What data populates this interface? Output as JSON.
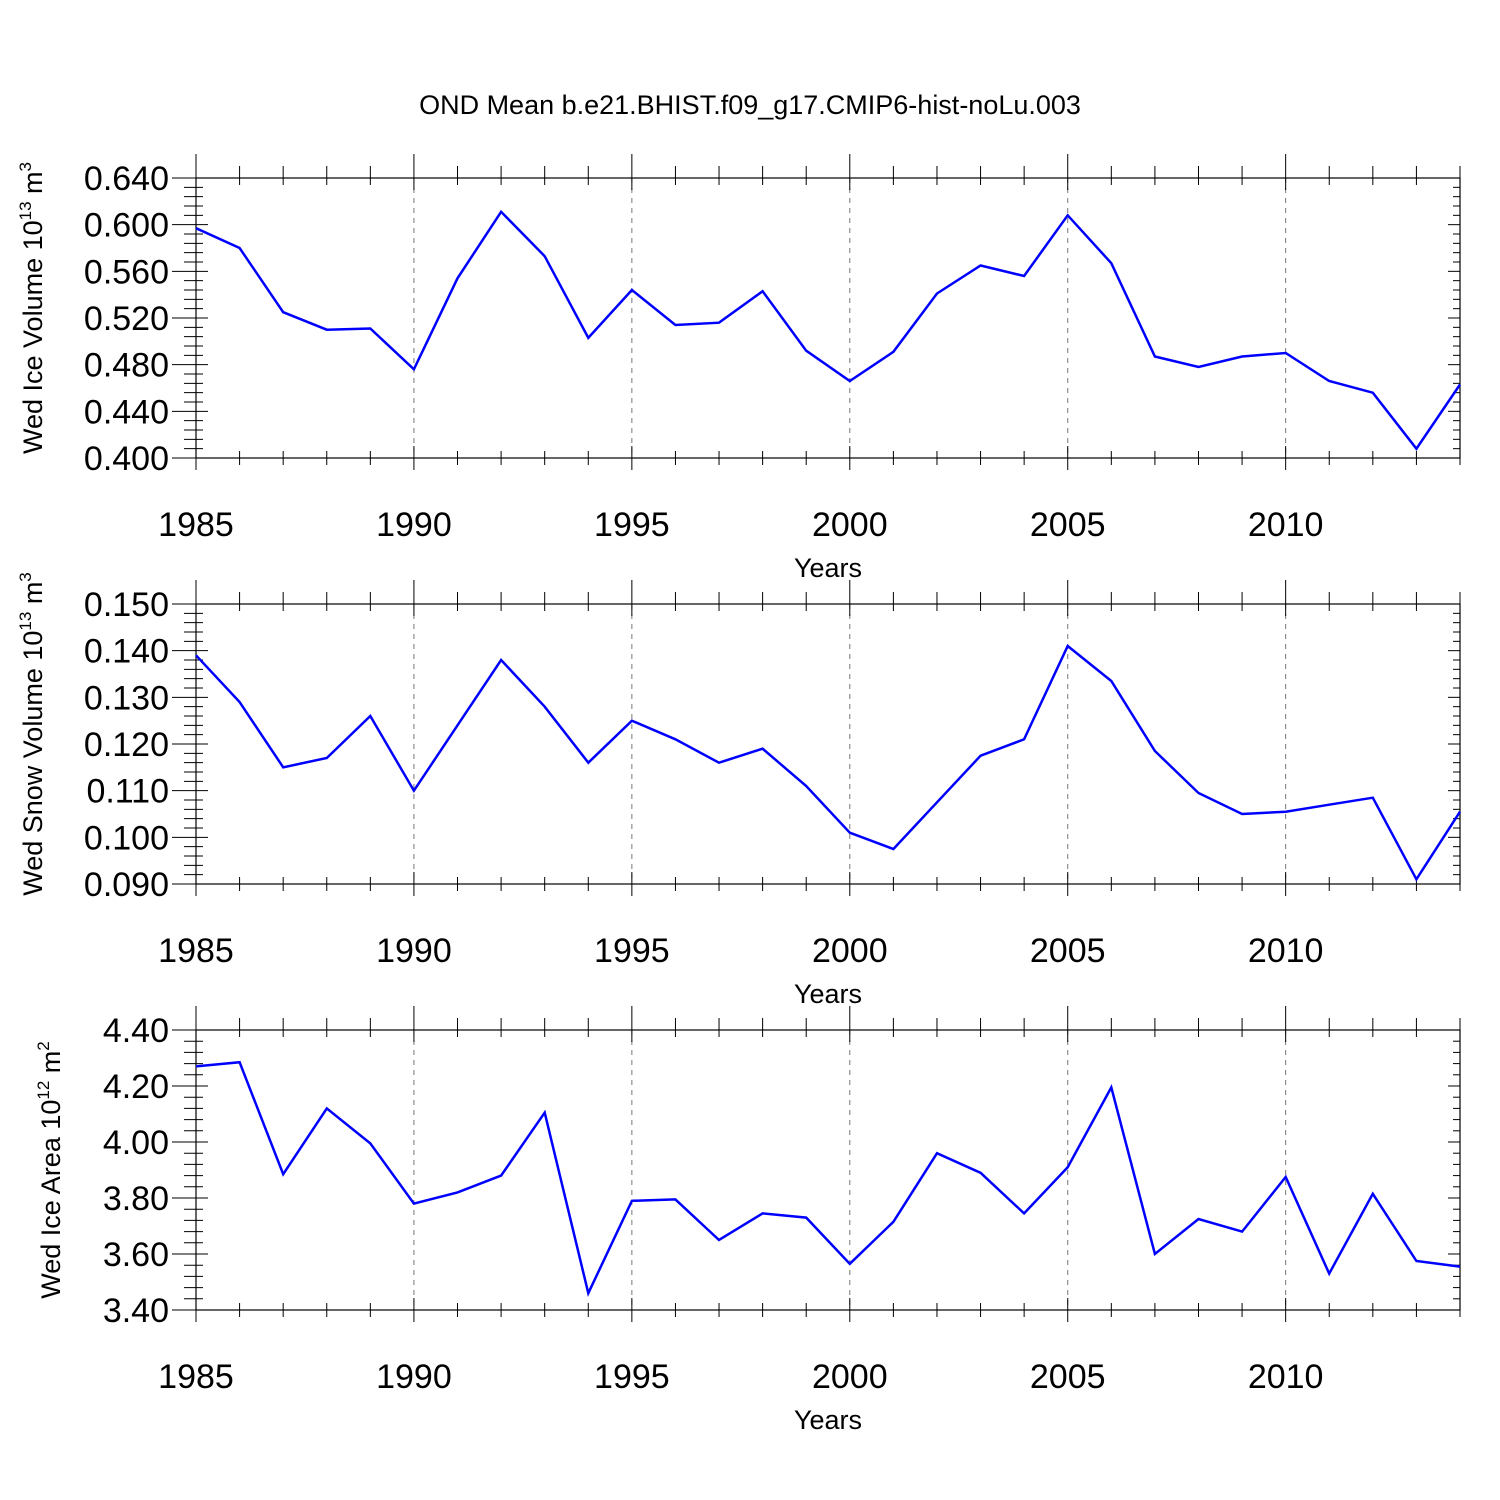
{
  "title": "OND Mean b.e21.BHIST.f09_g17.CMIP6-hist-noLu.003",
  "chart_data": [
    {
      "type": "line",
      "title": "OND Mean b.e21.BHIST.f09_g17.CMIP6-hist-noLu.003",
      "xlabel": "Years",
      "ylabel": {
        "text": "Wed Ice Volume 10",
        "exp": "13",
        "unit": " m",
        "unit_exp": "3"
      },
      "xlim": [
        1985,
        2014
      ],
      "ylim": [
        0.4,
        0.64
      ],
      "x_ticks": [
        1985,
        1990,
        1995,
        2000,
        2005,
        2010
      ],
      "x_tick_labels": [
        "1985",
        "1990",
        "1995",
        "2000",
        "2005",
        "2010"
      ],
      "y_ticks": [
        0.4,
        0.44,
        0.48,
        0.52,
        0.56,
        0.6,
        0.64
      ],
      "y_tick_labels": [
        "0.400",
        "0.440",
        "0.480",
        "0.520",
        "0.560",
        "0.600",
        "0.640"
      ],
      "grid": "vertical dashed at major x ticks",
      "line_color": "#0000ff",
      "x": [
        1985,
        1986,
        1987,
        1988,
        1989,
        1990,
        1991,
        1992,
        1993,
        1994,
        1995,
        1996,
        1997,
        1998,
        1999,
        2000,
        2001,
        2002,
        2003,
        2004,
        2005,
        2006,
        2007,
        2008,
        2009,
        2010,
        2011,
        2012,
        2013,
        2014
      ],
      "y": [
        0.597,
        0.58,
        0.525,
        0.51,
        0.511,
        0.476,
        0.554,
        0.611,
        0.573,
        0.503,
        0.544,
        0.514,
        0.516,
        0.543,
        0.492,
        0.466,
        0.491,
        0.541,
        0.565,
        0.556,
        0.608,
        0.567,
        0.487,
        0.478,
        0.487,
        0.49,
        0.466,
        0.456,
        0.408,
        0.463
      ]
    },
    {
      "type": "line",
      "xlabel": "Years",
      "ylabel": {
        "text": "Wed Snow Volume 10",
        "exp": "13",
        "unit": " m",
        "unit_exp": "3"
      },
      "xlim": [
        1985,
        2014
      ],
      "ylim": [
        0.09,
        0.15
      ],
      "x_ticks": [
        1985,
        1990,
        1995,
        2000,
        2005,
        2010
      ],
      "x_tick_labels": [
        "1985",
        "1990",
        "1995",
        "2000",
        "2005",
        "2010"
      ],
      "y_ticks": [
        0.09,
        0.1,
        0.11,
        0.12,
        0.13,
        0.14,
        0.15
      ],
      "y_tick_labels": [
        "0.090",
        "0.100",
        "0.110",
        "0.120",
        "0.130",
        "0.140",
        "0.150"
      ],
      "grid": "vertical dashed at major x ticks",
      "line_color": "#0000ff",
      "x": [
        1985,
        1986,
        1987,
        1988,
        1989,
        1990,
        1991,
        1992,
        1993,
        1994,
        1995,
        1996,
        1997,
        1998,
        1999,
        2000,
        2001,
        2002,
        2003,
        2004,
        2005,
        2006,
        2007,
        2008,
        2009,
        2010,
        2011,
        2012,
        2013,
        2014
      ],
      "y": [
        0.139,
        0.129,
        0.115,
        0.117,
        0.126,
        0.11,
        0.124,
        0.138,
        0.128,
        0.116,
        0.125,
        0.121,
        0.116,
        0.119,
        0.111,
        0.101,
        0.0975,
        0.1075,
        0.1175,
        0.121,
        0.141,
        0.1335,
        0.1185,
        0.1095,
        0.105,
        0.1055,
        0.107,
        0.1085,
        0.091,
        0.1055
      ]
    },
    {
      "type": "line",
      "xlabel": "Years",
      "ylabel": {
        "text": "Wed Ice Area 10",
        "exp": "12",
        "unit": " m",
        "unit_exp": "2"
      },
      "xlim": [
        1985,
        2014
      ],
      "ylim": [
        3.4,
        4.4
      ],
      "x_ticks": [
        1985,
        1990,
        1995,
        2000,
        2005,
        2010
      ],
      "x_tick_labels": [
        "1985",
        "1990",
        "1995",
        "2000",
        "2005",
        "2010"
      ],
      "y_ticks": [
        3.4,
        3.6,
        3.8,
        4.0,
        4.2,
        4.4
      ],
      "y_tick_labels": [
        "3.40",
        "3.60",
        "3.80",
        "4.00",
        "4.20",
        "4.40"
      ],
      "grid": "vertical dashed at major x ticks",
      "line_color": "#0000ff",
      "x": [
        1985,
        1986,
        1987,
        1988,
        1989,
        1990,
        1991,
        1992,
        1993,
        1994,
        1995,
        1996,
        1997,
        1998,
        1999,
        2000,
        2001,
        2002,
        2003,
        2004,
        2005,
        2006,
        2007,
        2008,
        2009,
        2010,
        2011,
        2012,
        2013,
        2014
      ],
      "y": [
        4.27,
        4.285,
        3.885,
        4.12,
        3.995,
        3.78,
        3.82,
        3.88,
        4.105,
        3.46,
        3.79,
        3.795,
        3.65,
        3.745,
        3.73,
        3.565,
        3.715,
        3.96,
        3.89,
        3.745,
        3.91,
        4.195,
        3.6,
        3.725,
        3.68,
        3.875,
        3.53,
        3.815,
        3.575,
        3.555
      ]
    }
  ]
}
